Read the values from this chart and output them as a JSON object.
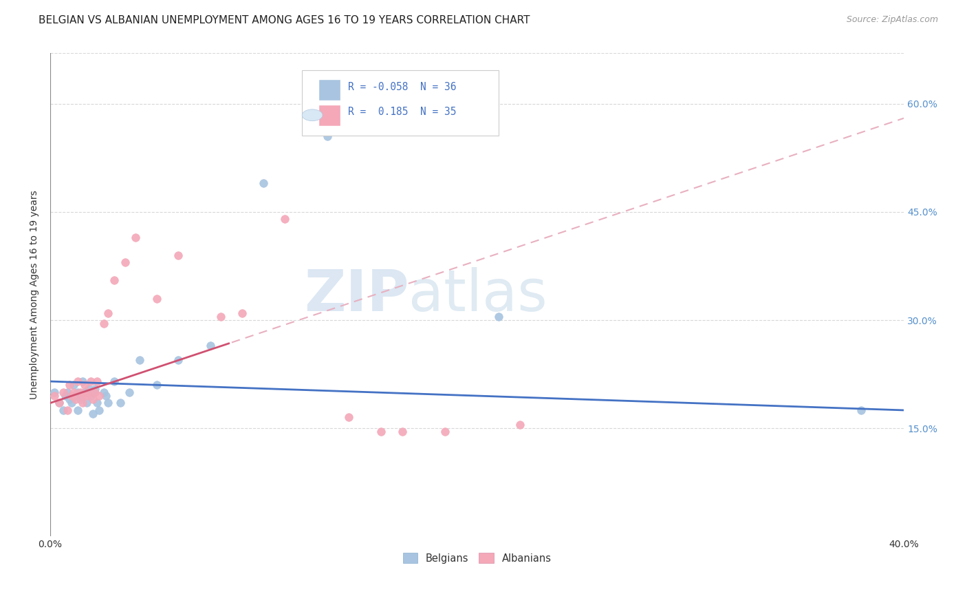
{
  "title": "BELGIAN VS ALBANIAN UNEMPLOYMENT AMONG AGES 16 TO 19 YEARS CORRELATION CHART",
  "source": "Source: ZipAtlas.com",
  "ylabel": "Unemployment Among Ages 16 to 19 years",
  "xlim": [
    0.0,
    0.4
  ],
  "ylim": [
    0.0,
    0.67
  ],
  "yticks": [
    0.15,
    0.3,
    0.45,
    0.6
  ],
  "ytick_labels": [
    "15.0%",
    "30.0%",
    "45.0%",
    "60.0%"
  ],
  "xticks": [
    0.0,
    0.1,
    0.2,
    0.3,
    0.4
  ],
  "xtick_labels": [
    "0.0%",
    "",
    "",
    "",
    "40.0%"
  ],
  "belgian_color": "#a8c4e0",
  "albanian_color": "#f4a8b8",
  "belgian_line_color": "#4472c4",
  "albanian_solid_color": "#d05070",
  "albanian_dash_color": "#e8b0c0",
  "R_belgian": -0.058,
  "N_belgian": 36,
  "R_albanian": 0.185,
  "N_albanian": 35,
  "belgians_x": [
    0.002,
    0.004,
    0.006,
    0.007,
    0.008,
    0.009,
    0.01,
    0.011,
    0.012,
    0.013,
    0.013,
    0.014,
    0.015,
    0.016,
    0.017,
    0.018,
    0.019,
    0.02,
    0.02,
    0.021,
    0.022,
    0.023,
    0.025,
    0.026,
    0.027,
    0.03,
    0.033,
    0.037,
    0.042,
    0.05,
    0.06,
    0.075,
    0.1,
    0.13,
    0.21,
    0.38
  ],
  "belgians_y": [
    0.2,
    0.185,
    0.175,
    0.195,
    0.2,
    0.19,
    0.185,
    0.21,
    0.195,
    0.2,
    0.175,
    0.19,
    0.215,
    0.2,
    0.185,
    0.205,
    0.195,
    0.2,
    0.17,
    0.205,
    0.185,
    0.175,
    0.2,
    0.195,
    0.185,
    0.215,
    0.185,
    0.2,
    0.245,
    0.21,
    0.245,
    0.265,
    0.49,
    0.555,
    0.305,
    0.175
  ],
  "albanians_x": [
    0.002,
    0.004,
    0.006,
    0.008,
    0.009,
    0.01,
    0.011,
    0.012,
    0.013,
    0.014,
    0.015,
    0.015,
    0.016,
    0.017,
    0.018,
    0.019,
    0.02,
    0.021,
    0.022,
    0.023,
    0.025,
    0.027,
    0.03,
    0.035,
    0.04,
    0.05,
    0.06,
    0.08,
    0.09,
    0.11,
    0.14,
    0.155,
    0.165,
    0.185,
    0.22
  ],
  "albanians_y": [
    0.195,
    0.185,
    0.2,
    0.175,
    0.21,
    0.195,
    0.2,
    0.19,
    0.215,
    0.2,
    0.185,
    0.195,
    0.21,
    0.195,
    0.2,
    0.215,
    0.19,
    0.2,
    0.215,
    0.195,
    0.295,
    0.31,
    0.355,
    0.38,
    0.415,
    0.33,
    0.39,
    0.305,
    0.31,
    0.44,
    0.165,
    0.145,
    0.145,
    0.145,
    0.155
  ],
  "watermark_zip": "ZIP",
  "watermark_atlas": "atlas",
  "background_color": "#ffffff",
  "grid_color": "#d8d8d8",
  "title_fontsize": 11,
  "label_fontsize": 10,
  "tick_fontsize": 10,
  "marker_size": 70
}
